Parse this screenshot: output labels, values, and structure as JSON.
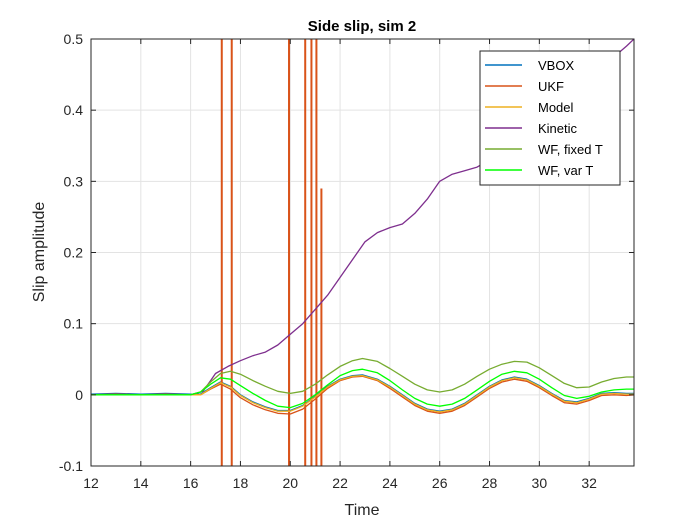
{
  "chart_data": {
    "type": "line",
    "title": "Side slip, sim 2",
    "xlabel": "Time",
    "ylabel": "Slip amplitude",
    "xlim": [
      12,
      33.8
    ],
    "ylim": [
      -0.1,
      0.5
    ],
    "xticks": [
      12,
      14,
      16,
      18,
      20,
      22,
      24,
      26,
      28,
      30,
      32
    ],
    "xtick_labels": [
      "12",
      "14",
      "16",
      "18",
      "20",
      "22",
      "24",
      "26",
      "28",
      "30",
      "32"
    ],
    "yticks": [
      -0.1,
      0,
      0.1,
      0.2,
      0.3,
      0.4,
      0.5
    ],
    "ytick_labels": [
      "-0.1",
      "0",
      "0.1",
      "0.2",
      "0.3",
      "0.4",
      "0.5"
    ],
    "grid": true,
    "legend_position": "top-right",
    "series": [
      {
        "name": "VBOX",
        "color": "#0072BD",
        "x": [
          12,
          13,
          14,
          15,
          16,
          16.4,
          16.8,
          17.2,
          17.6,
          18,
          18.5,
          19,
          19.5,
          20,
          20.5,
          21,
          21.5,
          22,
          22.5,
          22.9,
          23.5,
          24,
          24.5,
          25,
          25.5,
          26,
          26.5,
          27,
          27.5,
          28,
          28.5,
          29,
          29.5,
          30,
          30.5,
          31,
          31.5,
          32,
          32.5,
          33,
          33.5,
          33.8
        ],
        "y": [
          0.001,
          0.002,
          0.001,
          0.002,
          0.001,
          0.001,
          0.01,
          0.018,
          0.012,
          0.0,
          -0.01,
          -0.017,
          -0.022,
          -0.022,
          -0.015,
          -0.002,
          0.012,
          0.022,
          0.027,
          0.028,
          0.022,
          0.012,
          0.0,
          -0.012,
          -0.02,
          -0.023,
          -0.02,
          -0.012,
          0.0,
          0.012,
          0.021,
          0.025,
          0.022,
          0.013,
          0.002,
          -0.008,
          -0.01,
          -0.005,
          0.002,
          0.003,
          0.002,
          0.002
        ]
      },
      {
        "name": "UKF",
        "color": "#D95319",
        "x": [
          12,
          13,
          14,
          15,
          16,
          16.4,
          16.8,
          17.2,
          17.6,
          18,
          18.5,
          19,
          19.5,
          20,
          20.5,
          21,
          21.5,
          22,
          22.5,
          22.9,
          23.5,
          24,
          24.5,
          25,
          25.5,
          26,
          26.5,
          27,
          27.5,
          28,
          28.5,
          29,
          29.5,
          30,
          30.5,
          31,
          31.5,
          32,
          32.5,
          33,
          33.5,
          33.8
        ],
        "y": [
          0.0,
          0.001,
          0.0,
          0.001,
          0.0,
          0.0,
          0.008,
          0.015,
          0.008,
          -0.004,
          -0.014,
          -0.021,
          -0.026,
          -0.027,
          -0.02,
          -0.006,
          0.009,
          0.02,
          0.025,
          0.026,
          0.02,
          0.009,
          -0.003,
          -0.015,
          -0.023,
          -0.026,
          -0.023,
          -0.015,
          -0.003,
          0.009,
          0.018,
          0.022,
          0.019,
          0.01,
          -0.001,
          -0.011,
          -0.013,
          -0.008,
          -0.001,
          0.0,
          -0.001,
          0.0
        ],
        "spikes": [
          {
            "x": 17.25,
            "y": [
              -0.1,
              0.5
            ]
          },
          {
            "x": 17.65,
            "y": [
              -0.1,
              0.5
            ]
          },
          {
            "x": 19.95,
            "y": [
              -0.1,
              0.5
            ]
          },
          {
            "x": 20.6,
            "y": [
              -0.1,
              0.5
            ]
          },
          {
            "x": 20.85,
            "y": [
              -0.1,
              0.5
            ]
          },
          {
            "x": 21.05,
            "y": [
              -0.1,
              0.5
            ]
          },
          {
            "x": 21.25,
            "y": [
              -0.1,
              0.29
            ]
          }
        ]
      },
      {
        "name": "Model",
        "color": "#EDB120",
        "x": [
          12,
          13,
          14,
          15,
          16,
          16.4,
          16.8,
          17.2,
          17.6,
          18,
          18.5,
          19,
          19.5,
          20,
          20.5,
          21,
          21.5,
          22,
          22.5,
          22.9,
          23.5,
          24,
          24.5,
          25,
          25.5,
          26,
          26.5,
          27,
          27.5,
          28,
          28.5,
          29,
          29.5,
          30,
          30.5,
          31,
          31.5,
          32,
          32.5,
          33,
          33.5,
          33.8
        ],
        "y": [
          0.0,
          0.0,
          0.0,
          0.0,
          0.0,
          0.0,
          0.009,
          0.017,
          0.011,
          -0.001,
          -0.011,
          -0.018,
          -0.023,
          -0.023,
          -0.016,
          -0.003,
          0.011,
          0.021,
          0.026,
          0.027,
          0.021,
          0.011,
          -0.001,
          -0.013,
          -0.021,
          -0.024,
          -0.021,
          -0.013,
          -0.001,
          0.011,
          0.02,
          0.024,
          0.021,
          0.012,
          0.001,
          -0.009,
          -0.011,
          -0.006,
          0.001,
          0.002,
          0.001,
          0.001
        ]
      },
      {
        "name": "Kinetic",
        "color": "#7E2F8E",
        "x": [
          12,
          13,
          14,
          15,
          16,
          16.5,
          16.8,
          17,
          17.5,
          18,
          18.5,
          19,
          19.5,
          20,
          20.5,
          21,
          21.5,
          22,
          22.5,
          23,
          23.5,
          24,
          24.5,
          25,
          25.5,
          26,
          26.5,
          27,
          27.5,
          28,
          28.5,
          29,
          29.5,
          30,
          30.5,
          31,
          31.5,
          32,
          32.5,
          33,
          33.5,
          33.8
        ],
        "y": [
          0.0,
          0.0,
          0.0,
          0.0,
          0.0,
          0.005,
          0.02,
          0.03,
          0.04,
          0.048,
          0.055,
          0.06,
          0.07,
          0.085,
          0.1,
          0.12,
          0.14,
          0.165,
          0.19,
          0.215,
          0.228,
          0.235,
          0.24,
          0.255,
          0.275,
          0.3,
          0.31,
          0.315,
          0.32,
          0.33,
          0.34,
          0.355,
          0.37,
          0.385,
          0.4,
          0.415,
          0.43,
          0.445,
          0.46,
          0.475,
          0.49,
          0.5
        ]
      },
      {
        "name": "WF, fixed T",
        "color": "#77AC30",
        "x": [
          12,
          13,
          14,
          15,
          16,
          16.4,
          16.8,
          17.2,
          17.6,
          18,
          18.5,
          19,
          19.5,
          20,
          20.5,
          21,
          21.5,
          22,
          22.5,
          22.9,
          23.5,
          24,
          24.5,
          25,
          25.5,
          26,
          26.5,
          27,
          27.5,
          28,
          28.5,
          29,
          29.5,
          30,
          30.5,
          31,
          31.5,
          32,
          32.5,
          33,
          33.5,
          33.8
        ],
        "y": [
          0.0,
          0.0,
          0.0,
          0.0,
          0.0,
          0.004,
          0.018,
          0.03,
          0.033,
          0.029,
          0.02,
          0.012,
          0.005,
          0.002,
          0.005,
          0.015,
          0.028,
          0.04,
          0.048,
          0.051,
          0.047,
          0.037,
          0.026,
          0.015,
          0.007,
          0.004,
          0.007,
          0.015,
          0.026,
          0.036,
          0.043,
          0.047,
          0.046,
          0.038,
          0.027,
          0.016,
          0.01,
          0.011,
          0.018,
          0.023,
          0.025,
          0.025
        ]
      },
      {
        "name": "WF, var T",
        "color": "#00FF00",
        "x": [
          12,
          13,
          14,
          15,
          16,
          16.4,
          16.8,
          17.2,
          17.6,
          18,
          18.5,
          19,
          19.5,
          20,
          20.5,
          21,
          21.5,
          22,
          22.5,
          22.9,
          23.5,
          24,
          24.5,
          25,
          25.5,
          26,
          26.5,
          27,
          27.5,
          28,
          28.5,
          29,
          29.5,
          30,
          30.5,
          31,
          31.5,
          32,
          32.5,
          33,
          33.5,
          33.8
        ],
        "y": [
          0.0,
          0.0,
          0.0,
          0.0,
          0.0,
          0.004,
          0.015,
          0.024,
          0.022,
          0.013,
          0.002,
          -0.008,
          -0.016,
          -0.018,
          -0.012,
          0.0,
          0.014,
          0.027,
          0.034,
          0.036,
          0.031,
          0.02,
          0.007,
          -0.005,
          -0.013,
          -0.016,
          -0.013,
          -0.005,
          0.007,
          0.019,
          0.029,
          0.033,
          0.031,
          0.022,
          0.01,
          -0.001,
          -0.005,
          -0.002,
          0.004,
          0.007,
          0.008,
          0.008
        ]
      }
    ]
  }
}
